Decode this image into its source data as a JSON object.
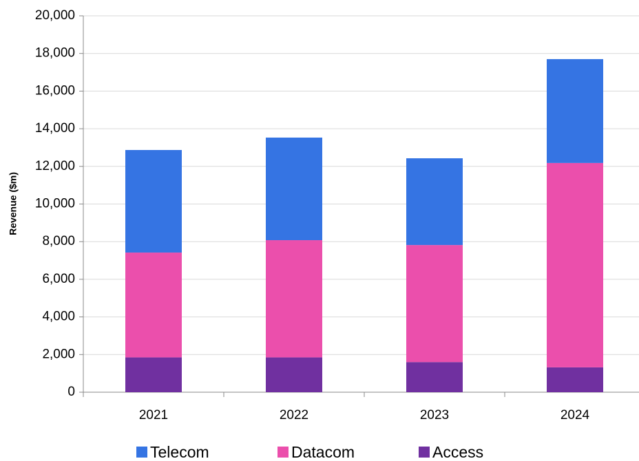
{
  "chart_data": {
    "type": "stacked_bar",
    "y_label": "Revenue ($m)",
    "categories": [
      "2021",
      "2022",
      "2023",
      "2024"
    ],
    "series": [
      {
        "name": "Telecom",
        "color": "#3574e3",
        "values": [
          5450,
          5450,
          4610,
          5520
        ]
      },
      {
        "name": "Datacom",
        "color": "#eb4fac",
        "values": [
          5570,
          6230,
          6220,
          10860
        ]
      },
      {
        "name": "Access",
        "color": "#7030a0",
        "values": [
          1850,
          1850,
          1600,
          1320
        ]
      }
    ],
    "ylim": [
      0,
      20000
    ],
    "yticks": [
      0,
      {
        "value": 2000,
        "label": "2,000"
      },
      {
        "value": 4000,
        "label": "4,000"
      },
      {
        "value": 6000,
        "label": "6,000"
      },
      {
        "value": 8000,
        "label": "8,000"
      },
      {
        "value": 10000,
        "label": "10,000"
      },
      {
        "value": 12000,
        "label": "12,000"
      },
      {
        "value": 14000,
        "label": "14,000"
      },
      {
        "value": 16000,
        "label": "16,000"
      },
      {
        "value": 18000,
        "label": "18,000"
      },
      {
        "value": 20000,
        "label": "20,000"
      }
    ],
    "grid": true,
    "legend": "bottom"
  }
}
